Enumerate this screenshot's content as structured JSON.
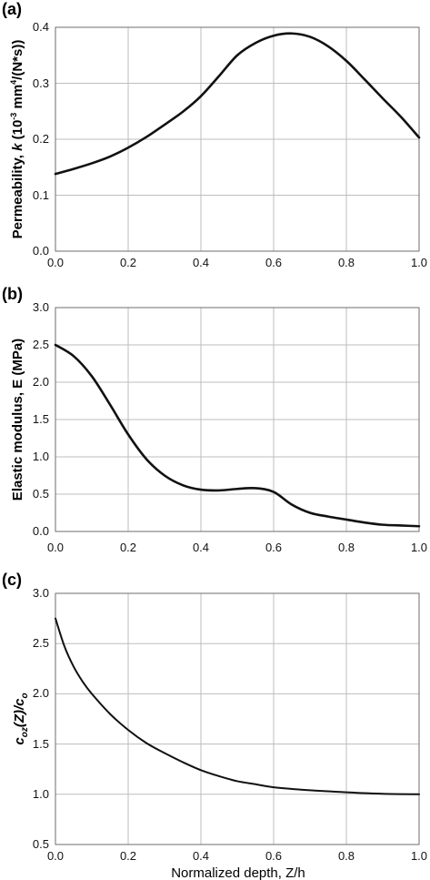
{
  "chart_data": [
    {
      "type": "line",
      "panel_label": "(a)",
      "ylabel_text": "Permeability, k (10-3 mm4/(N*s))",
      "xlabel": "",
      "xlim": [
        0,
        1
      ],
      "ylim": [
        0,
        0.4
      ],
      "x_ticks": [
        "0.0",
        "0.2",
        "0.4",
        "0.6",
        "0.8",
        "1.0"
      ],
      "y_ticks": [
        "0.0",
        "0.1",
        "0.2",
        "0.3",
        "0.4"
      ],
      "grid": true,
      "x": [
        0.0,
        0.05,
        0.1,
        0.15,
        0.2,
        0.25,
        0.3,
        0.35,
        0.4,
        0.45,
        0.5,
        0.55,
        0.6,
        0.65,
        0.7,
        0.75,
        0.8,
        0.85,
        0.9,
        0.95,
        1.0
      ],
      "y": [
        0.138,
        0.147,
        0.157,
        0.169,
        0.185,
        0.204,
        0.226,
        0.249,
        0.277,
        0.313,
        0.35,
        0.372,
        0.385,
        0.389,
        0.383,
        0.366,
        0.34,
        0.307,
        0.273,
        0.24,
        0.203
      ]
    },
    {
      "type": "line",
      "panel_label": "(b)",
      "ylabel_text": "Elastic modulus, E (MPa)",
      "xlabel": "",
      "xlim": [
        0,
        1
      ],
      "ylim": [
        0,
        3.0
      ],
      "x_ticks": [
        "0.0",
        "0.2",
        "0.4",
        "0.6",
        "0.8",
        "1.0"
      ],
      "y_ticks": [
        "0.0",
        "0.5",
        "1.0",
        "1.5",
        "2.0",
        "2.5",
        "3.0"
      ],
      "grid": true,
      "x": [
        0.0,
        0.05,
        0.1,
        0.15,
        0.2,
        0.25,
        0.3,
        0.35,
        0.4,
        0.45,
        0.5,
        0.55,
        0.6,
        0.65,
        0.7,
        0.75,
        0.8,
        0.85,
        0.9,
        0.95,
        1.0
      ],
      "y": [
        2.5,
        2.35,
        2.08,
        1.7,
        1.3,
        0.97,
        0.75,
        0.62,
        0.56,
        0.55,
        0.57,
        0.58,
        0.53,
        0.36,
        0.25,
        0.2,
        0.16,
        0.12,
        0.09,
        0.08,
        0.07
      ]
    },
    {
      "type": "line",
      "panel_label": "(c)",
      "ylabel_text": "coz(Z)/co",
      "xlabel": "Normalized depth, Z/h",
      "xlim": [
        0,
        1
      ],
      "ylim": [
        0.5,
        3.0
      ],
      "x_ticks": [
        "0.0",
        "0.2",
        "0.4",
        "0.6",
        "0.8",
        "1.0"
      ],
      "y_ticks": [
        "0.5",
        "1.0",
        "1.5",
        "2.0",
        "2.5",
        "3.0"
      ],
      "grid": true,
      "x": [
        0.0,
        0.025,
        0.05,
        0.075,
        0.1,
        0.15,
        0.2,
        0.25,
        0.3,
        0.35,
        0.4,
        0.45,
        0.5,
        0.55,
        0.6,
        0.7,
        0.8,
        0.9,
        1.0
      ],
      "y": [
        2.75,
        2.47,
        2.27,
        2.12,
        2.0,
        1.8,
        1.64,
        1.51,
        1.41,
        1.32,
        1.24,
        1.18,
        1.13,
        1.1,
        1.07,
        1.04,
        1.02,
        1.005,
        1.0
      ]
    }
  ]
}
